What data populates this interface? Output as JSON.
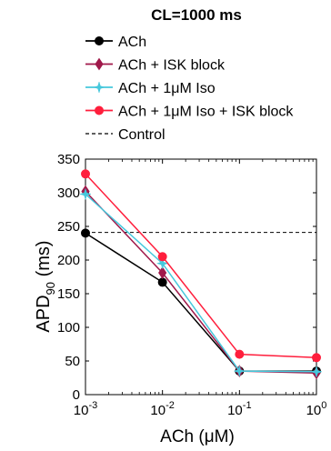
{
  "chart_data": {
    "type": "line",
    "title": "CL=1000 ms",
    "xlabel": "ACh (μM)",
    "ylabel": "APD90 (ms)",
    "x_scale": "log",
    "x": [
      0.001,
      0.01,
      0.1,
      1
    ],
    "x_tick_labels": [
      {
        "base": "10",
        "exp": "-3"
      },
      {
        "base": "10",
        "exp": "-2"
      },
      {
        "base": "10",
        "exp": "-1"
      },
      {
        "base": "10",
        "exp": "0"
      }
    ],
    "xlim": [
      0.001,
      1
    ],
    "ylim": [
      0,
      350
    ],
    "y_ticks": [
      0,
      50,
      100,
      150,
      200,
      250,
      300,
      350
    ],
    "grid": false,
    "legend_position": "top",
    "series": [
      {
        "name": "ACh",
        "values": [
          240,
          167,
          35,
          35
        ],
        "color": "#000000",
        "marker": "circle"
      },
      {
        "name": "ACh + ISK block",
        "values": [
          302,
          181,
          35,
          32
        ],
        "color": "#a0194a",
        "marker": "diamond"
      },
      {
        "name": "ACh + 1μM Iso",
        "values": [
          298,
          195,
          35,
          34
        ],
        "color": "#46c8dc",
        "marker": "star"
      },
      {
        "name": "ACh + 1μM Iso + ISK block",
        "values": [
          328,
          205,
          60,
          55
        ],
        "color": "#ff1e3c",
        "marker": "circle"
      }
    ],
    "reference_lines": [
      {
        "name": "Control",
        "y": 241,
        "style": "dashed",
        "color": "#000000"
      }
    ]
  }
}
